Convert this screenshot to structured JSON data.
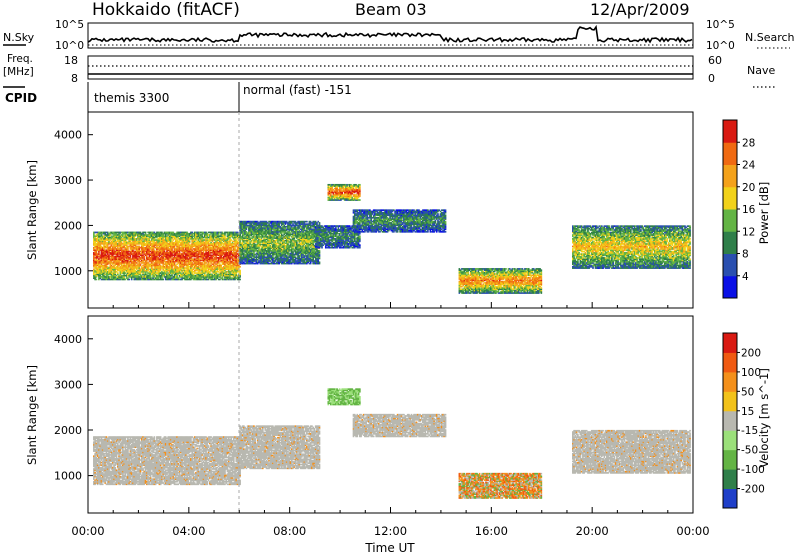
{
  "header": {
    "station": "Hokkaido (fitACF)",
    "beam": "Beam 03",
    "date": "12/Apr/2009"
  },
  "noise_panel": {
    "left_label": "N.Sky",
    "left_ticks": [
      "10^5",
      "10^0"
    ],
    "right_ticks": [
      "10^5",
      "10^0"
    ],
    "right_label": "N.Search"
  },
  "freq_panel": {
    "left_label_1": "Freq.",
    "left_label_2": "[MHz]",
    "left_ticks": [
      "18",
      "8"
    ],
    "right_ticks": [
      "60",
      "0"
    ],
    "right_label": "Nave"
  },
  "cpid_panel": {
    "label": "CPID",
    "segments": [
      {
        "name": "themis 3300",
        "start_hour": 0
      },
      {
        "name": "normal (fast) -151",
        "start_hour": 6
      }
    ]
  },
  "chart_data": [
    {
      "type": "heatmap",
      "parameter": "Power",
      "ylabel": "Slant Range [km]",
      "xlabel": "",
      "ylim": [
        180,
        4500
      ],
      "xlim_hours": [
        0,
        24
      ],
      "y_ticks": [
        1000,
        2000,
        3000,
        4000
      ],
      "colorbar": {
        "label": "Power [dB]",
        "ticks": [
          "4",
          "8",
          "12",
          "16",
          "20",
          "24",
          "28"
        ],
        "colors": [
          "#0a10e6",
          "#2a4fb0",
          "#2f7f4a",
          "#63b444",
          "#f2d21a",
          "#f4a21b",
          "#f06a12",
          "#d91a12"
        ]
      },
      "echo_regions": [
        {
          "t0": 0.2,
          "t1": 6.0,
          "r0": 800,
          "r1": 1850,
          "level": 6
        },
        {
          "t0": 6.0,
          "t1": 9.2,
          "r0": 1150,
          "r1": 2100,
          "level": 3
        },
        {
          "t0": 9.0,
          "t1": 10.8,
          "r0": 1500,
          "r1": 2000,
          "level": 2
        },
        {
          "t0": 9.5,
          "t1": 10.8,
          "r0": 2550,
          "r1": 2900,
          "level": 6
        },
        {
          "t0": 10.5,
          "t1": 14.2,
          "r0": 1850,
          "r1": 2350,
          "level": 2
        },
        {
          "t0": 14.7,
          "t1": 18.0,
          "r0": 500,
          "r1": 1050,
          "level": 5
        },
        {
          "t0": 19.2,
          "t1": 23.9,
          "r0": 1050,
          "r1": 2000,
          "level": 4
        }
      ]
    },
    {
      "type": "heatmap",
      "parameter": "Velocity",
      "ylabel": "Slant Range [km]",
      "xlabel": "Time UT",
      "ylim": [
        180,
        4500
      ],
      "xlim_hours": [
        0,
        24
      ],
      "y_ticks": [
        1000,
        2000,
        3000,
        4000
      ],
      "x_ticks": [
        "00:00",
        "04:00",
        "08:00",
        "12:00",
        "16:00",
        "20:00",
        "00:00"
      ],
      "colorbar": {
        "label": "Velocity [m s^-1]",
        "ticks": [
          "200",
          "100",
          "50",
          "15",
          "-15",
          "-50",
          "-100",
          "-200"
        ],
        "colors": [
          "#1f3fc9",
          "#2f7f4a",
          "#63b444",
          "#9be07a",
          "#b8b8b0",
          "#f2c21a",
          "#f4901b",
          "#f05a12",
          "#d91a12"
        ]
      },
      "echo_regions": [
        {
          "t0": 0.2,
          "t1": 6.0,
          "r0": 800,
          "r1": 1850,
          "class": "ground"
        },
        {
          "t0": 6.0,
          "t1": 9.2,
          "r0": 1150,
          "r1": 2100,
          "class": "ground"
        },
        {
          "t0": 9.5,
          "t1": 10.8,
          "r0": 2550,
          "r1": 2900,
          "class": "positive"
        },
        {
          "t0": 10.5,
          "t1": 14.2,
          "r0": 1850,
          "r1": 2350,
          "class": "ground"
        },
        {
          "t0": 14.7,
          "t1": 18.0,
          "r0": 500,
          "r1": 1050,
          "class": "mixed"
        },
        {
          "t0": 19.2,
          "t1": 23.9,
          "r0": 1050,
          "r1": 2000,
          "class": "ground"
        }
      ]
    }
  ]
}
